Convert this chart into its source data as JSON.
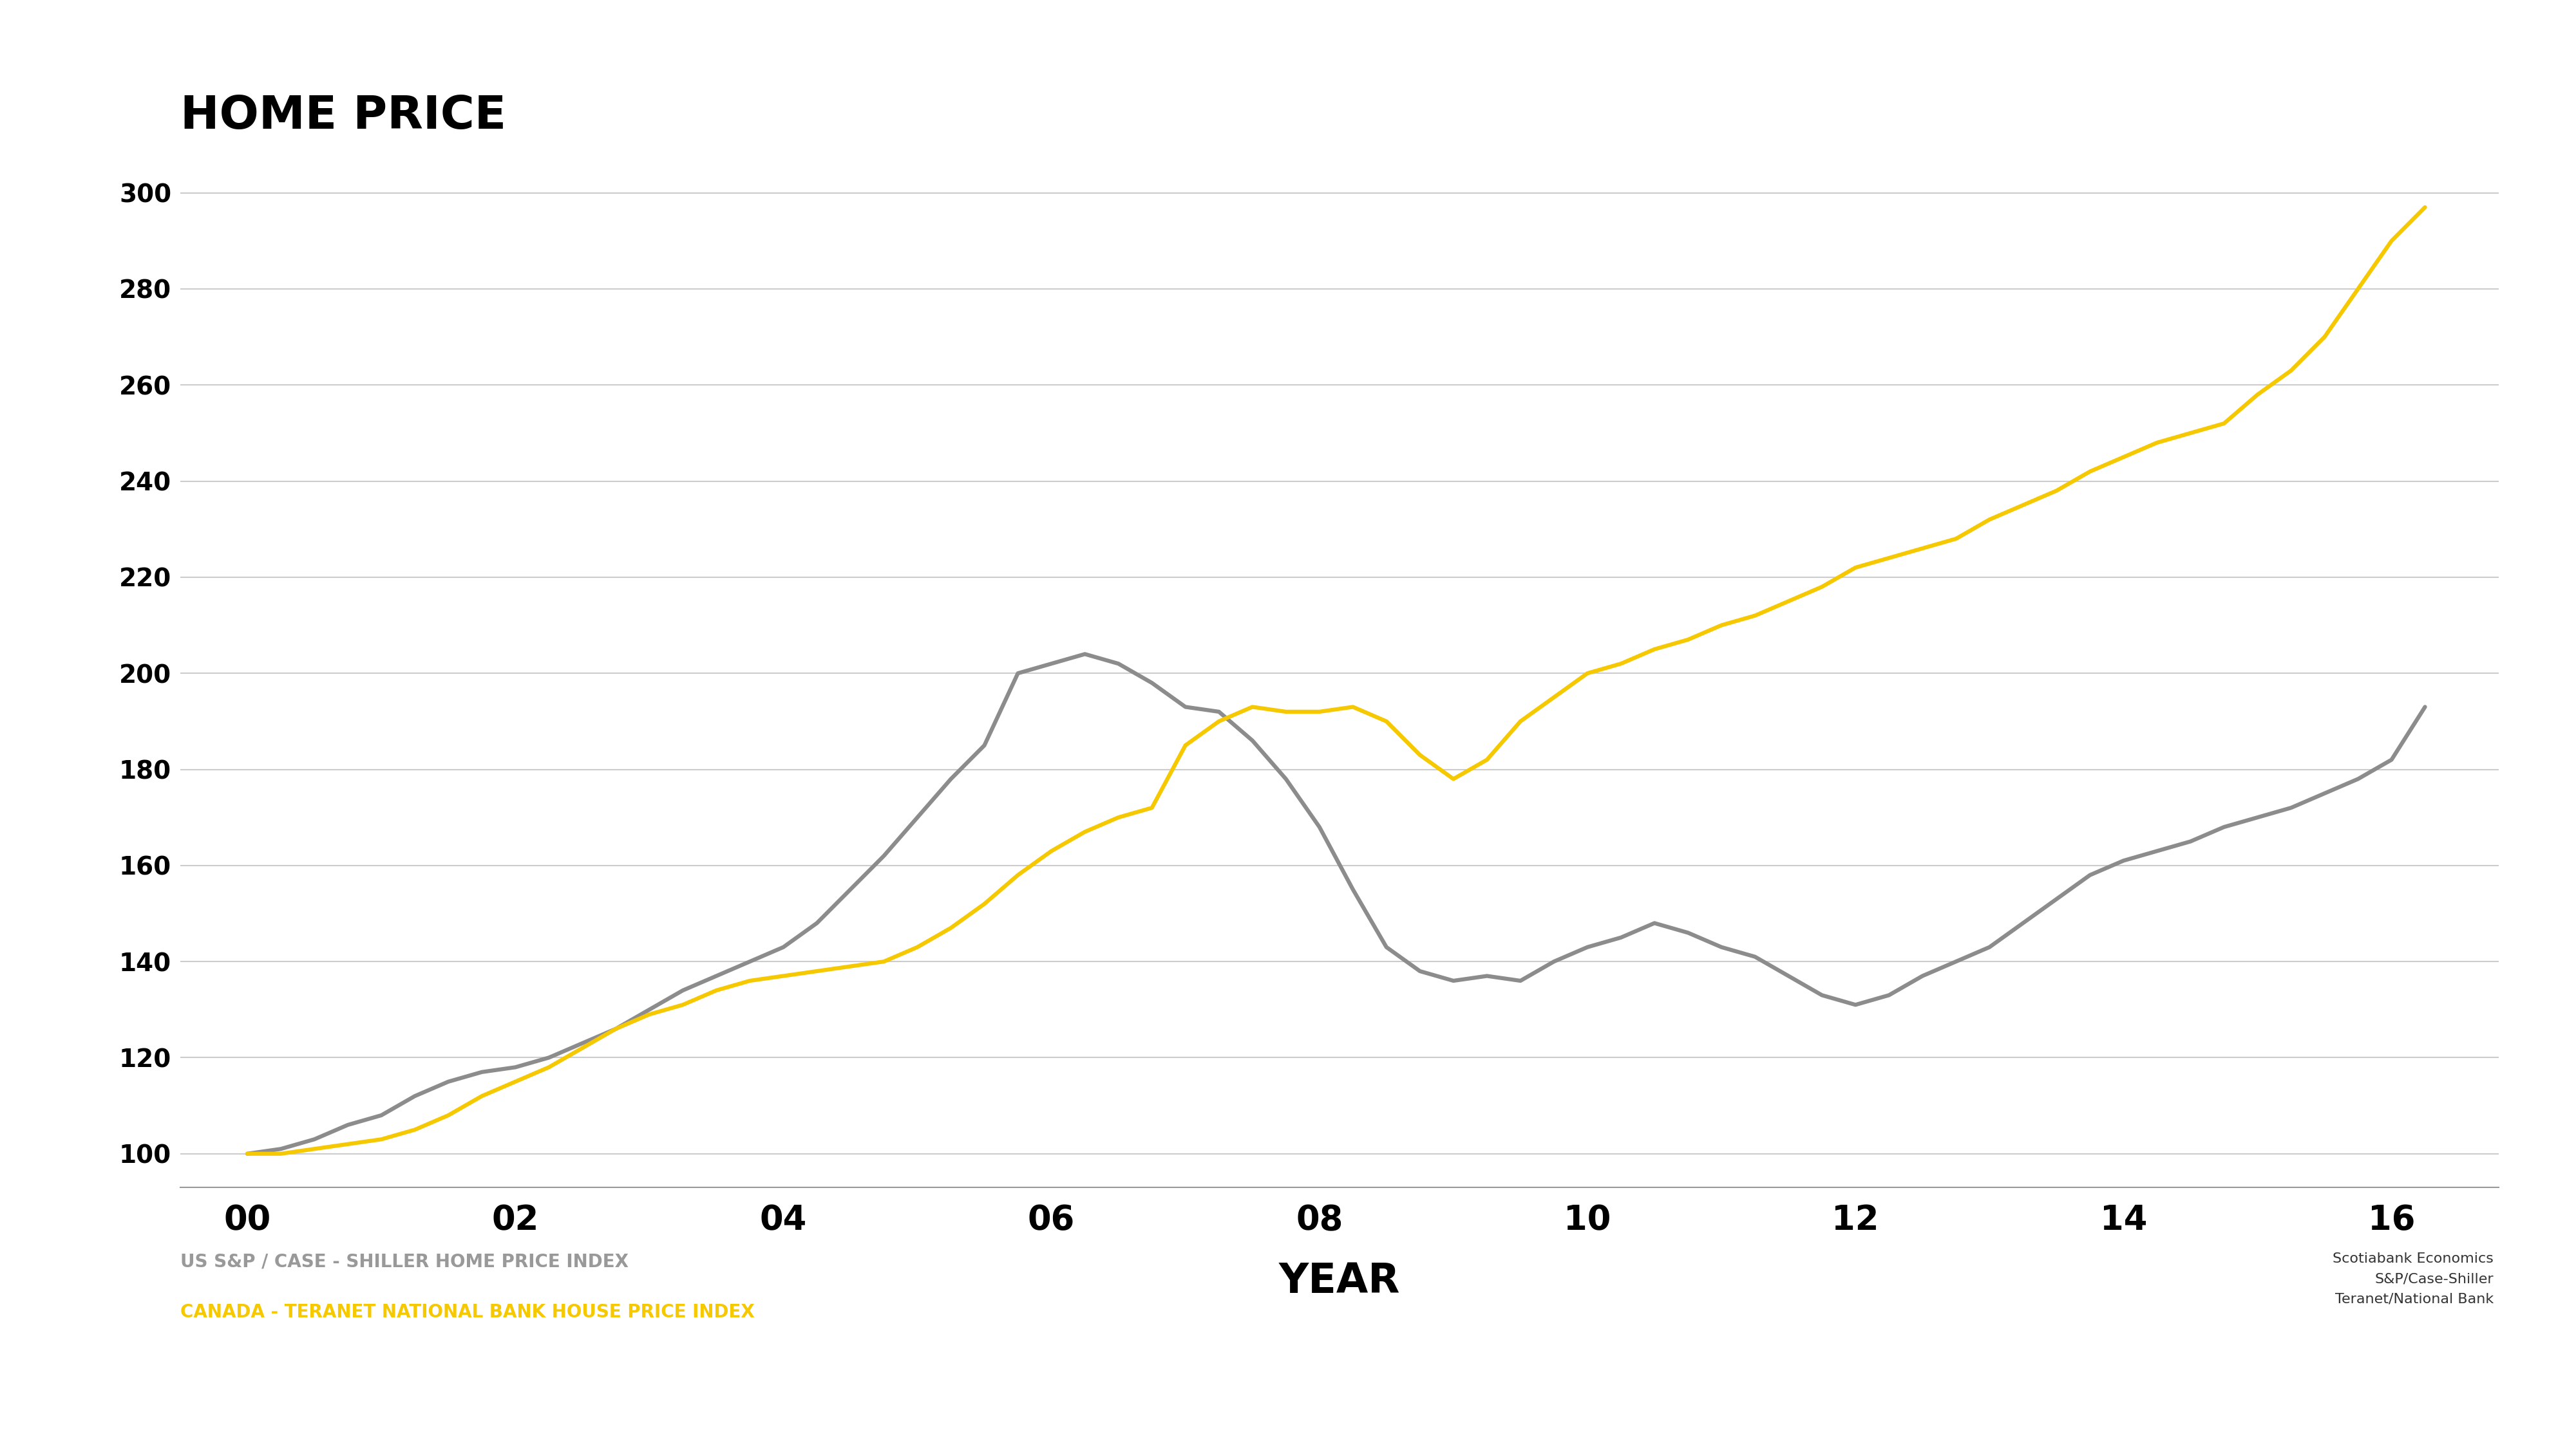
{
  "title": "HOME PRICE",
  "xlabel": "YEAR",
  "background_color": "#ffffff",
  "us_color": "#8c8c8c",
  "canada_color": "#f5c800",
  "us_label": "US S&P / CASE - SHILLER HOME PRICE INDEX",
  "canada_label": "CANADA - TERANET NATIONAL BANK HOUSE PRICE INDEX",
  "source_lines": [
    "Scotiabank Economics",
    "S&P/Case-Shiller",
    "Teranet/National Bank"
  ],
  "yticks": [
    100,
    120,
    140,
    160,
    180,
    200,
    220,
    240,
    260,
    280,
    300
  ],
  "xticks": [
    2000,
    2002,
    2004,
    2006,
    2008,
    2010,
    2012,
    2014,
    2016
  ],
  "xtick_labels": [
    "00",
    "02",
    "04",
    "06",
    "08",
    "10",
    "12",
    "14",
    "16"
  ],
  "ylim": [
    93,
    310
  ],
  "xlim": [
    1999.5,
    2016.8
  ],
  "us_x": [
    2000,
    2000.25,
    2000.5,
    2000.75,
    2001,
    2001.25,
    2001.5,
    2001.75,
    2002,
    2002.25,
    2002.5,
    2002.75,
    2003,
    2003.25,
    2003.5,
    2003.75,
    2004,
    2004.25,
    2004.5,
    2004.75,
    2005,
    2005.25,
    2005.5,
    2005.75,
    2006,
    2006.25,
    2006.5,
    2006.75,
    2007,
    2007.25,
    2007.5,
    2007.75,
    2008,
    2008.25,
    2008.5,
    2008.75,
    2009,
    2009.25,
    2009.5,
    2009.75,
    2010,
    2010.25,
    2010.5,
    2010.75,
    2011,
    2011.25,
    2011.5,
    2011.75,
    2012,
    2012.25,
    2012.5,
    2012.75,
    2013,
    2013.25,
    2013.5,
    2013.75,
    2014,
    2014.25,
    2014.5,
    2014.75,
    2015,
    2015.25,
    2015.5,
    2015.75,
    2016,
    2016.25
  ],
  "us_y": [
    100,
    101,
    103,
    106,
    108,
    112,
    115,
    117,
    118,
    120,
    123,
    126,
    130,
    134,
    137,
    140,
    143,
    148,
    155,
    162,
    170,
    178,
    185,
    200,
    202,
    204,
    202,
    198,
    193,
    192,
    186,
    178,
    168,
    155,
    143,
    138,
    136,
    137,
    136,
    140,
    143,
    145,
    148,
    146,
    143,
    141,
    137,
    133,
    131,
    133,
    137,
    140,
    143,
    148,
    153,
    158,
    161,
    163,
    165,
    168,
    170,
    172,
    175,
    178,
    182,
    193
  ],
  "canada_x": [
    2000,
    2000.25,
    2000.5,
    2000.75,
    2001,
    2001.25,
    2001.5,
    2001.75,
    2002,
    2002.25,
    2002.5,
    2002.75,
    2003,
    2003.25,
    2003.5,
    2003.75,
    2004,
    2004.25,
    2004.5,
    2004.75,
    2005,
    2005.25,
    2005.5,
    2005.75,
    2006,
    2006.25,
    2006.5,
    2006.75,
    2007,
    2007.25,
    2007.5,
    2007.75,
    2008,
    2008.25,
    2008.5,
    2008.75,
    2009,
    2009.25,
    2009.5,
    2009.75,
    2010,
    2010.25,
    2010.5,
    2010.75,
    2011,
    2011.25,
    2011.5,
    2011.75,
    2012,
    2012.25,
    2012.5,
    2012.75,
    2013,
    2013.25,
    2013.5,
    2013.75,
    2014,
    2014.25,
    2014.5,
    2014.75,
    2015,
    2015.25,
    2015.5,
    2015.75,
    2016,
    2016.25
  ],
  "canada_y": [
    100,
    100,
    101,
    102,
    103,
    105,
    108,
    112,
    115,
    118,
    122,
    126,
    129,
    131,
    134,
    136,
    137,
    138,
    139,
    140,
    143,
    147,
    152,
    158,
    163,
    167,
    170,
    172,
    185,
    190,
    193,
    192,
    192,
    193,
    190,
    183,
    178,
    182,
    190,
    195,
    200,
    202,
    205,
    207,
    210,
    212,
    215,
    218,
    222,
    224,
    226,
    228,
    232,
    235,
    238,
    242,
    245,
    248,
    250,
    252,
    258,
    263,
    270,
    280,
    290,
    297
  ]
}
